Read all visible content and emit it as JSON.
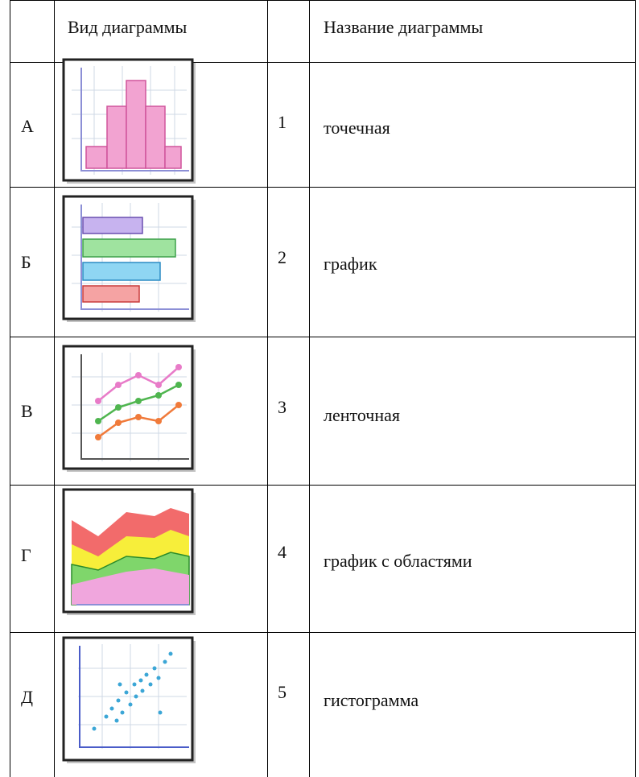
{
  "table": {
    "header": {
      "type_column": "Вид диаграммы",
      "name_column": "Название диаграммы"
    },
    "rows": [
      {
        "letter": "А",
        "number": 1,
        "name": "точечная"
      },
      {
        "letter": "Б",
        "number": 2,
        "name": "график"
      },
      {
        "letter": "В",
        "number": 3,
        "name": "ленточная"
      },
      {
        "letter": "Г",
        "number": 4,
        "name": "график с областями"
      },
      {
        "letter": "Д",
        "number": 5,
        "name": "гистограмма"
      }
    ]
  }
}
